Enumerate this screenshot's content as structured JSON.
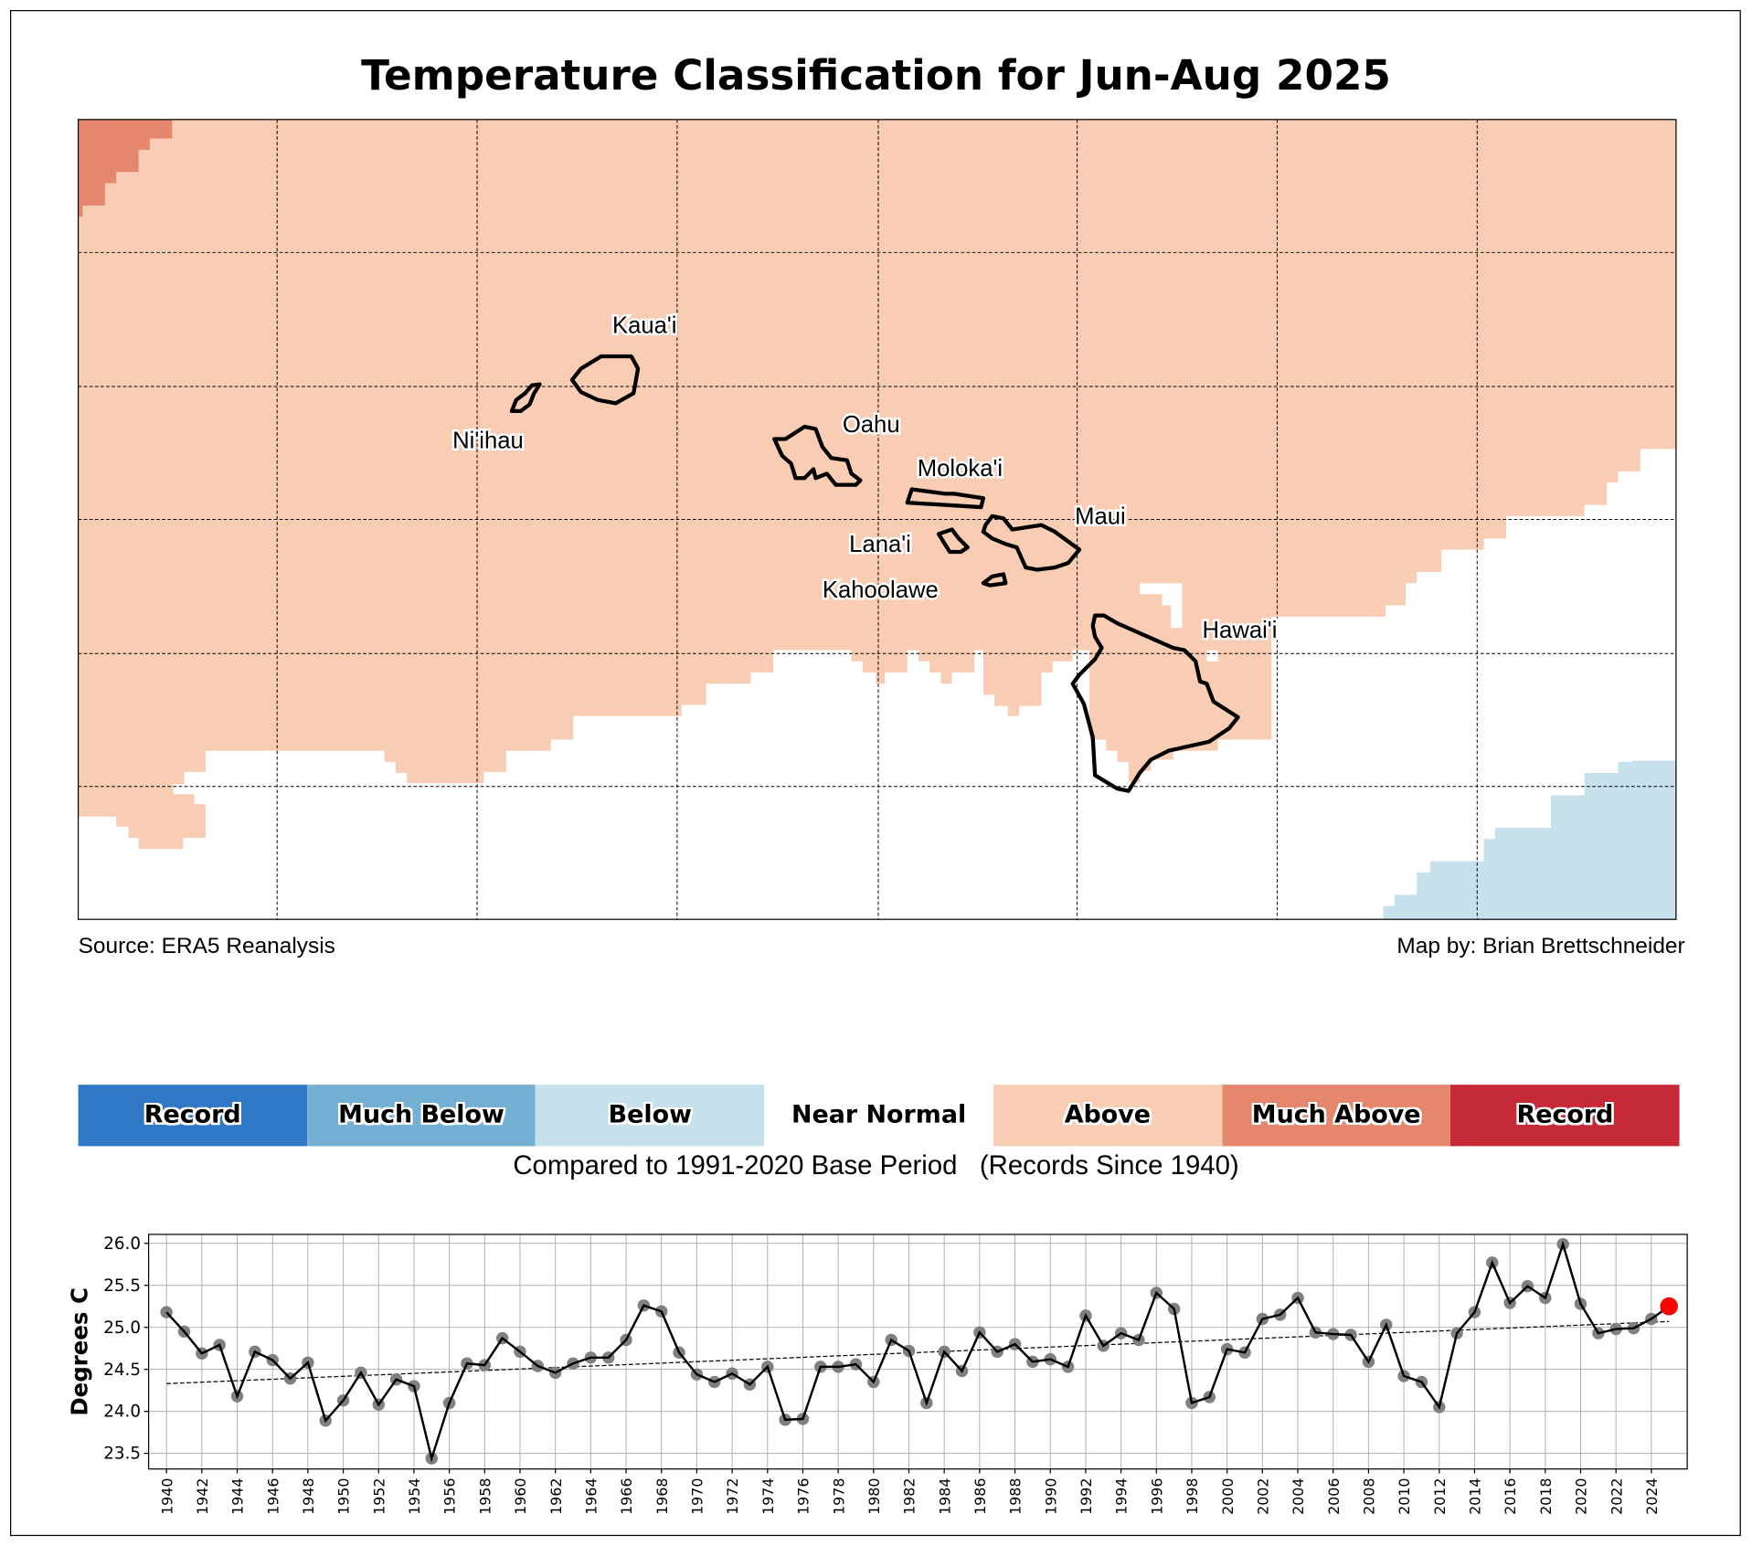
{
  "title": "Temperature Classification for Jun-Aug 2025",
  "map": {
    "source": "Source: ERA5 Reanalysis",
    "credit": "Map by: Brian Brettschneider",
    "islands": [
      "Kaua'i",
      "Ni'ihau",
      "Oahu",
      "Moloka'i",
      "Maui",
      "Lana'i",
      "Kahoolawe",
      "Hawai'i"
    ]
  },
  "legend": {
    "categories": [
      {
        "label": "Record",
        "color": "#3078c5"
      },
      {
        "label": "Much Below",
        "color": "#74b0d3"
      },
      {
        "label": "Below",
        "color": "#c6e0ec"
      },
      {
        "label": "Near Normal",
        "color": "#ffffff"
      },
      {
        "label": "Above",
        "color": "#f8cdb4"
      },
      {
        "label": "Much Above",
        "color": "#e4876d"
      },
      {
        "label": "Record",
        "color": "#c72a37"
      }
    ],
    "caption": "Compared to 1991-2020 Base Period   (Records Since 1940)"
  },
  "chart_data": {
    "type": "line",
    "title": "",
    "xlabel": "",
    "ylabel": "Degrees C",
    "ylim": [
      23.4,
      26.1
    ],
    "xlim": [
      1939,
      2026
    ],
    "yticks": [
      "23.5",
      "24.0",
      "24.5",
      "25.0",
      "25.5",
      "26.0"
    ],
    "grid": true,
    "x": [
      1940,
      1941,
      1942,
      1943,
      1944,
      1945,
      1946,
      1947,
      1948,
      1949,
      1950,
      1951,
      1952,
      1953,
      1954,
      1955,
      1956,
      1957,
      1958,
      1959,
      1960,
      1961,
      1962,
      1963,
      1964,
      1965,
      1966,
      1967,
      1968,
      1969,
      1970,
      1971,
      1972,
      1973,
      1974,
      1975,
      1976,
      1977,
      1978,
      1979,
      1980,
      1981,
      1982,
      1983,
      1984,
      1985,
      1986,
      1987,
      1988,
      1989,
      1990,
      1991,
      1992,
      1993,
      1994,
      1995,
      1996,
      1997,
      1998,
      1999,
      2000,
      2001,
      2002,
      2003,
      2004,
      2005,
      2006,
      2007,
      2008,
      2009,
      2010,
      2011,
      2012,
      2013,
      2014,
      2015,
      2016,
      2017,
      2018,
      2019,
      2020,
      2021,
      2022,
      2023,
      2024,
      2025
    ],
    "series": [
      {
        "name": "Jun-Aug mean temperature",
        "values": [
          25.18,
          24.95,
          24.69,
          24.79,
          24.18,
          24.71,
          24.61,
          24.39,
          24.58,
          23.89,
          24.13,
          24.46,
          24.08,
          24.38,
          24.3,
          23.44,
          24.1,
          24.57,
          24.55,
          24.87,
          24.71,
          24.54,
          24.46,
          24.57,
          24.64,
          24.64,
          24.85,
          25.26,
          25.19,
          24.7,
          24.44,
          24.35,
          24.45,
          24.32,
          24.53,
          23.9,
          23.91,
          24.53,
          24.53,
          24.56,
          24.35,
          24.85,
          24.72,
          24.1,
          24.71,
          24.48,
          24.94,
          24.71,
          24.8,
          24.59,
          24.62,
          24.53,
          25.14,
          24.78,
          24.93,
          24.85,
          25.41,
          25.22,
          24.1,
          24.17,
          24.74,
          24.7,
          25.1,
          25.15,
          25.35,
          24.94,
          24.92,
          24.91,
          24.59,
          25.03,
          24.42,
          24.35,
          24.05,
          24.93,
          25.18,
          25.77,
          25.29,
          25.49,
          25.35,
          25.99,
          25.28,
          24.93,
          24.98,
          24.99,
          25.1,
          25.25
        ]
      },
      {
        "name": "Linear trend",
        "values": [
          24.33,
          25.07
        ],
        "x": [
          1940,
          2025
        ]
      }
    ],
    "highlight": {
      "x": 2025,
      "value": 25.25,
      "color": "#ff0000"
    }
  }
}
